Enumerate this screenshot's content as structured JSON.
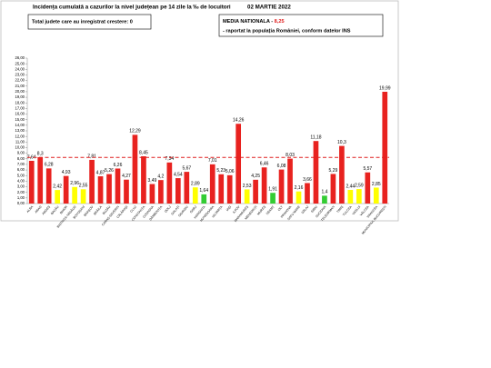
{
  "chart_data": {
    "type": "bar",
    "title": "Incidența cumulată a cazurilor la nivel județean pe 14 zile la ‰ de locuitori",
    "date": "02 MARTIE 2022",
    "increase_note": "Total judete care au inregistrat crestere: 0",
    "average_prefix": "MEDIA NATIONALA -",
    "average": {
      "value": 8.25,
      "label": "8,25"
    },
    "average_suffix": "-  raportat la populația României, conform datelor INS",
    "average_color": "#e02020",
    "categories": [
      "ALBA",
      "ARAD",
      "ARGEȘ",
      "BACĂU",
      "BIHOR",
      "BISTRIȚA-NĂSĂUD",
      "BOTOȘANI",
      "BRAȘOV",
      "BRĂILA",
      "BUZĂU",
      "CARAȘ-SEVERIN",
      "CĂLĂRAȘI",
      "CLUJ",
      "CONSTANȚA",
      "COVASNA",
      "DÂMBOVIȚA",
      "DOLJ",
      "GALAȚI",
      "GIURGIU",
      "GORJ",
      "HARGHITA",
      "HUNEDOARA",
      "IALOMIȚA",
      "IAȘI",
      "ILFOV",
      "MARAMUREȘ",
      "MEHEDINȚI",
      "MUREȘ",
      "NEAMȚ",
      "OLT",
      "PRAHOVA",
      "SATU MARE",
      "SĂLAJ",
      "SIBIU",
      "SUCEAVA",
      "TELEORMAN",
      "TIMIȘ",
      "TULCEA",
      "VASLUI",
      "VÂLCEA",
      "VRANCEA",
      "MUNICIPIUL BUCUREȘTI"
    ],
    "values": [
      7.64,
      8.3,
      6.28,
      2.42,
      4.93,
      2.96,
      2.55,
      7.81,
      4.87,
      5.26,
      6.26,
      4.27,
      12.29,
      8.45,
      3.49,
      4.2,
      7.34,
      4.54,
      5.67,
      2.89,
      1.64,
      7.01,
      5.23,
      5.06,
      14.26,
      2.53,
      4.25,
      6.46,
      1.91,
      6.08,
      8.03,
      2.16,
      3.66,
      11.18,
      1.4,
      5.29,
      10.3,
      2.44,
      2.59,
      5.57,
      2.85,
      19.99
    ],
    "value_labels": [
      "7,64",
      "8,3",
      "6,28",
      "2,42",
      "4,93",
      "2,96",
      "2,55",
      "7,81",
      "4,87",
      "5,26",
      "6,26",
      "4,27",
      "12,29",
      "8,45",
      "3,49",
      "4,2",
      "7,34",
      "4,54",
      "5,67",
      "2,89",
      "1,64",
      "7,01",
      "5,23",
      "5,06",
      "14,26",
      "2,53",
      "4,25",
      "6,46",
      "1,91",
      "6,08",
      "8,03",
      "2,16",
      "3,66",
      "11,18",
      "1,4",
      "5,29",
      "10,3",
      "2,44",
      "2,59",
      "5,57",
      "2,85",
      "19,99"
    ],
    "colors": [
      "#e8221f",
      "#e8221f",
      "#e8221f",
      "#ffff00",
      "#e8221f",
      "#ffff00",
      "#ffff00",
      "#e8221f",
      "#e8221f",
      "#e8221f",
      "#e8221f",
      "#e8221f",
      "#e8221f",
      "#e8221f",
      "#e8221f",
      "#e8221f",
      "#e8221f",
      "#e8221f",
      "#e8221f",
      "#ffff00",
      "#33cc33",
      "#e8221f",
      "#e8221f",
      "#e8221f",
      "#e8221f",
      "#ffff00",
      "#e8221f",
      "#e8221f",
      "#33cc33",
      "#e8221f",
      "#e8221f",
      "#ffff00",
      "#e8221f",
      "#e8221f",
      "#33cc33",
      "#e8221f",
      "#e8221f",
      "#ffff00",
      "#ffff00",
      "#e8221f",
      "#ffff00",
      "#e8221f"
    ],
    "ylim": [
      0,
      26
    ],
    "yticks": [
      {
        "value": 0,
        "label": "0,00"
      },
      {
        "value": 1,
        "label": "1,00"
      },
      {
        "value": 2,
        "label": "2,00"
      },
      {
        "value": 3,
        "label": "3,00"
      },
      {
        "value": 4,
        "label": "4,00"
      },
      {
        "value": 5,
        "label": "5,00"
      },
      {
        "value": 6,
        "label": "6,00"
      },
      {
        "value": 7,
        "label": "7,00"
      },
      {
        "value": 8,
        "label": "8,00"
      },
      {
        "value": 9,
        "label": "9,00"
      },
      {
        "value": 10,
        "label": "10,00"
      },
      {
        "value": 11,
        "label": "11,00"
      },
      {
        "value": 12,
        "label": "12,00"
      },
      {
        "value": 13,
        "label": "13,00"
      },
      {
        "value": 14,
        "label": "14,00"
      },
      {
        "value": 15,
        "label": "15,00"
      },
      {
        "value": 16,
        "label": "16,00"
      },
      {
        "value": 17,
        "label": "17,00"
      },
      {
        "value": 18,
        "label": "18,00"
      },
      {
        "value": 19,
        "label": "19,00"
      },
      {
        "value": 20,
        "label": "20,00"
      },
      {
        "value": 21,
        "label": "21,00"
      },
      {
        "value": 22,
        "label": "22,00"
      },
      {
        "value": 23,
        "label": "23,00"
      },
      {
        "value": 24,
        "label": "24,00"
      },
      {
        "value": 25,
        "label": "25,00"
      },
      {
        "value": 26,
        "label": "26,00"
      }
    ],
    "grid": false
  }
}
